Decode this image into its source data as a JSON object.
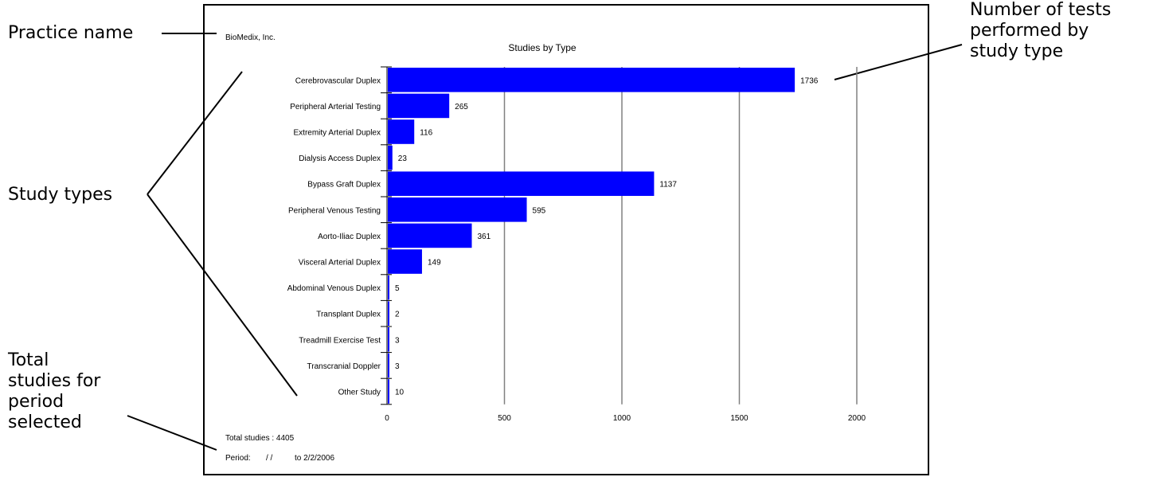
{
  "annotations": {
    "practice_name": "Practice name",
    "study_types": "Study types",
    "total_studies_lines": [
      "Total",
      "studies for",
      "period",
      "selected"
    ],
    "tests_lines": [
      "Number of tests",
      "performed by",
      "study type"
    ]
  },
  "report": {
    "practice": "BioMedix, Inc.",
    "total_studies": "Total studies : 4405",
    "period_label": "Period:",
    "period_start": "/ /",
    "period_end": "to 2/2/2006"
  },
  "chart_data": {
    "type": "bar",
    "orientation": "horizontal",
    "title": "Studies by Type",
    "categories": [
      "Cerebrovascular Duplex",
      "Peripheral Arterial Testing",
      "Extremity Arterial Duplex",
      "Dialysis Access Duplex",
      "Bypass Graft Duplex",
      "Peripheral Venous Testing",
      "Aorto-Iliac Duplex",
      "Visceral Arterial Duplex",
      "Abdominal Venous Duplex",
      "Transplant Duplex",
      "Treadmill Exercise Test",
      "Transcranial Doppler",
      "Other Study"
    ],
    "values": [
      1736,
      265,
      116,
      23,
      1137,
      595,
      361,
      149,
      5,
      2,
      3,
      3,
      10
    ],
    "xlim": [
      0,
      2000
    ],
    "xticks": [
      0,
      500,
      1000,
      1500,
      2000
    ],
    "grid": true,
    "bar_color": "#0000ff",
    "legend": "none"
  }
}
